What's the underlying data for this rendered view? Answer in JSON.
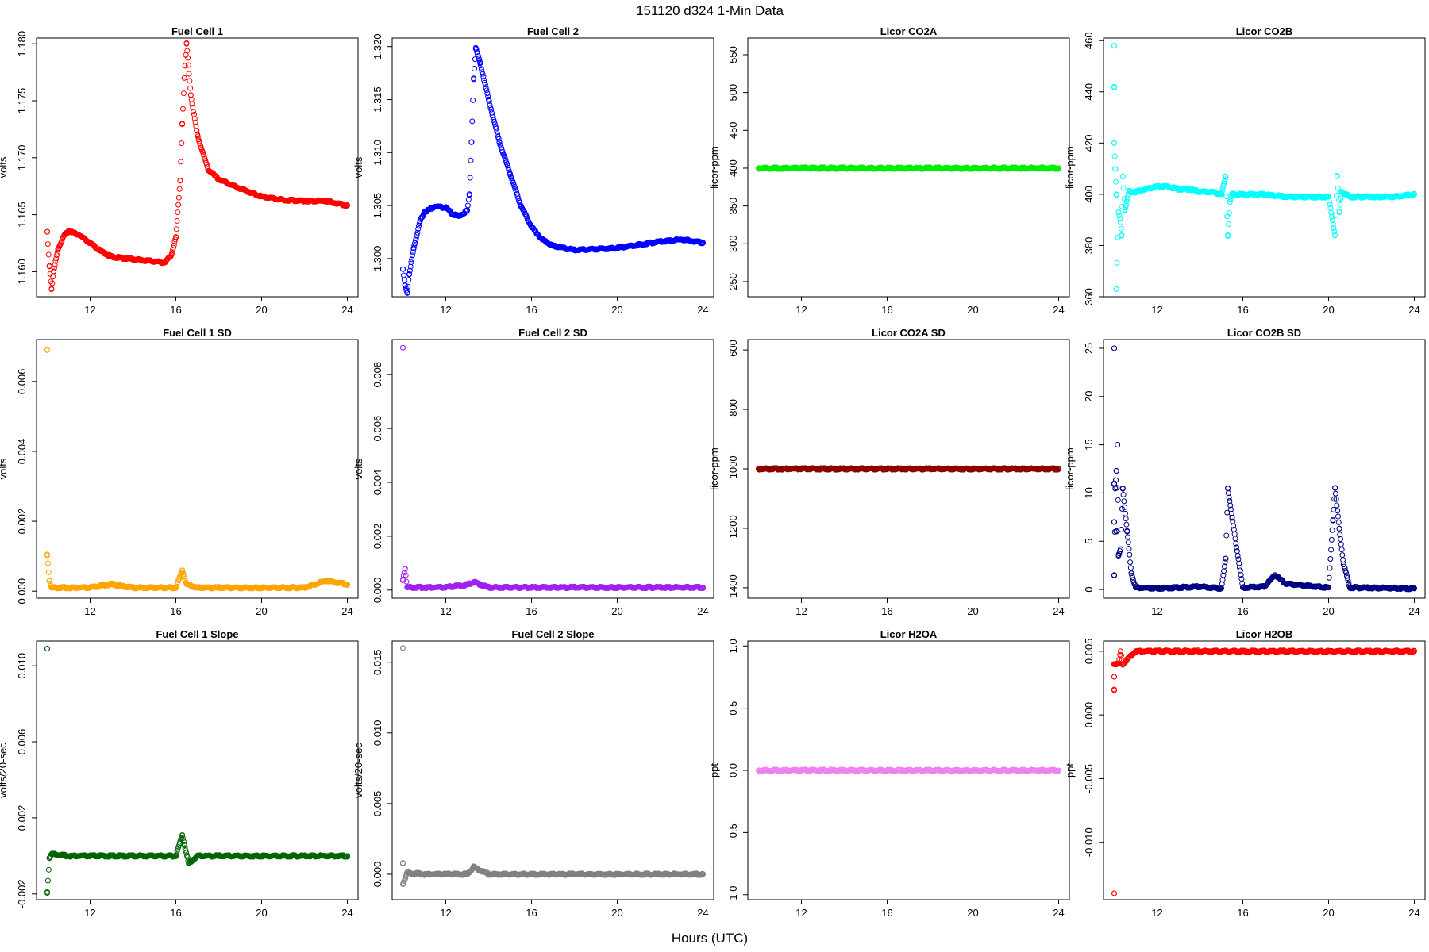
{
  "figure": {
    "title": "151120    d324    1-Min Data",
    "xlabel": "Hours (UTC)"
  },
  "chart_data": [
    {
      "type": "scatter",
      "title": "Fuel Cell 1",
      "ylabel": "volts",
      "color": "#ff0000",
      "xlim": [
        9.5,
        24.5
      ],
      "ylim": [
        1.1578,
        1.1805
      ],
      "xticks": [
        "12",
        "16",
        "20",
        "24"
      ],
      "yticks": [
        "1.160",
        "1.165",
        "1.170",
        "1.175",
        "1.180"
      ],
      "points": [
        [
          10.0,
          1.1635
        ],
        [
          10.1,
          1.1605
        ],
        [
          10.2,
          1.1585
        ],
        [
          10.3,
          1.16
        ],
        [
          10.5,
          1.162
        ],
        [
          10.8,
          1.1632
        ],
        [
          11.0,
          1.1636
        ],
        [
          11.5,
          1.1632
        ],
        [
          12.0,
          1.1625
        ],
        [
          12.5,
          1.1618
        ],
        [
          13.0,
          1.1613
        ],
        [
          13.5,
          1.1612
        ],
        [
          14.0,
          1.1611
        ],
        [
          14.5,
          1.161
        ],
        [
          15.0,
          1.1609
        ],
        [
          15.5,
          1.1608
        ],
        [
          15.8,
          1.1615
        ],
        [
          16.0,
          1.163
        ],
        [
          16.2,
          1.168
        ],
        [
          16.3,
          1.173
        ],
        [
          16.4,
          1.177
        ],
        [
          16.5,
          1.18
        ],
        [
          16.7,
          1.1755
        ],
        [
          17.0,
          1.172
        ],
        [
          17.5,
          1.169
        ],
        [
          18.0,
          1.1681
        ],
        [
          19.0,
          1.1673
        ],
        [
          20.0,
          1.1666
        ],
        [
          21.0,
          1.1663
        ],
        [
          22.0,
          1.1662
        ],
        [
          23.0,
          1.1662
        ],
        [
          24.0,
          1.1658
        ]
      ]
    },
    {
      "type": "scatter",
      "title": "Fuel Cell 2",
      "ylabel": "volts",
      "color": "#0000ff",
      "xlim": [
        9.5,
        24.5
      ],
      "ylim": [
        1.2964,
        1.3208
      ],
      "xticks": [
        "12",
        "16",
        "20",
        "24"
      ],
      "yticks": [
        "1.300",
        "1.305",
        "1.310",
        "1.315",
        "1.320"
      ],
      "points": [
        [
          10.0,
          1.299
        ],
        [
          10.1,
          1.2975
        ],
        [
          10.2,
          1.2968
        ],
        [
          10.3,
          1.2985
        ],
        [
          10.5,
          1.301
        ],
        [
          10.8,
          1.3035
        ],
        [
          11.0,
          1.3044
        ],
        [
          11.5,
          1.3049
        ],
        [
          12.0,
          1.3048
        ],
        [
          12.3,
          1.3042
        ],
        [
          12.6,
          1.304
        ],
        [
          13.0,
          1.3045
        ],
        [
          13.1,
          1.306
        ],
        [
          13.2,
          1.311
        ],
        [
          13.3,
          1.317
        ],
        [
          13.4,
          1.3198
        ],
        [
          13.6,
          1.3185
        ],
        [
          14.0,
          1.315
        ],
        [
          14.5,
          1.311
        ],
        [
          15.0,
          1.308
        ],
        [
          15.5,
          1.305
        ],
        [
          16.0,
          1.303
        ],
        [
          16.5,
          1.3018
        ],
        [
          17.0,
          1.3012
        ],
        [
          18.0,
          1.3008
        ],
        [
          19.0,
          1.3009
        ],
        [
          20.0,
          1.301
        ],
        [
          21.0,
          1.3013
        ],
        [
          22.0,
          1.3016
        ],
        [
          23.0,
          1.3018
        ],
        [
          24.0,
          1.3015
        ]
      ]
    },
    {
      "type": "scatter",
      "title": "Licor CO2A",
      "ylabel": "licor-ppm",
      "color": "#00ee00",
      "xlim": [
        9.5,
        24.5
      ],
      "ylim": [
        230,
        572
      ],
      "xticks": [
        "12",
        "16",
        "20",
        "24"
      ],
      "yticks": [
        "250",
        "300",
        "350",
        "400",
        "450",
        "500",
        "550"
      ],
      "points": [
        [
          10.0,
          400
        ],
        [
          24.0,
          400
        ]
      ]
    },
    {
      "type": "scatter",
      "title": "Licor CO2B",
      "ylabel": "licor-ppm",
      "color": "#00ffff",
      "xlim": [
        9.5,
        24.5
      ],
      "ylim": [
        360,
        461
      ],
      "xticks": [
        "12",
        "16",
        "20",
        "24"
      ],
      "yticks": [
        "360",
        "380",
        "400",
        "420",
        "440",
        "460"
      ],
      "points": [
        [
          10.0,
          458
        ],
        [
          10.0,
          442
        ],
        [
          10.0,
          420
        ],
        [
          10.05,
          410
        ],
        [
          10.1,
          400
        ],
        [
          10.1,
          363
        ],
        [
          10.2,
          393
        ],
        [
          10.3,
          389
        ],
        [
          10.35,
          384
        ],
        [
          10.4,
          407
        ],
        [
          10.5,
          394
        ],
        [
          10.7,
          401
        ],
        [
          11.0,
          401
        ],
        [
          11.5,
          402
        ],
        [
          12.0,
          403
        ],
        [
          12.5,
          403
        ],
        [
          13.0,
          402
        ],
        [
          13.5,
          402
        ],
        [
          14.0,
          401
        ],
        [
          14.5,
          401
        ],
        [
          15.0,
          400
        ],
        [
          15.2,
          407
        ],
        [
          15.3,
          384
        ],
        [
          15.4,
          397
        ],
        [
          15.5,
          400
        ],
        [
          16.0,
          400
        ],
        [
          17.0,
          400
        ],
        [
          18.0,
          399
        ],
        [
          19.0,
          399
        ],
        [
          20.0,
          399
        ],
        [
          20.3,
          384
        ],
        [
          20.4,
          407
        ],
        [
          20.5,
          393
        ],
        [
          20.6,
          401
        ],
        [
          21.0,
          399
        ],
        [
          22.0,
          399
        ],
        [
          23.0,
          399
        ],
        [
          24.0,
          400
        ]
      ]
    },
    {
      "type": "scatter",
      "title": "Fuel Cell 1 SD",
      "ylabel": "volts",
      "color": "#ffa500",
      "xlim": [
        9.5,
        24.5
      ],
      "ylim": [
        -0.0002,
        0.0072
      ],
      "xticks": [
        "12",
        "16",
        "20",
        "24"
      ],
      "yticks": [
        "0.000",
        "0.002",
        "0.004",
        "0.006"
      ],
      "points": [
        [
          10.0,
          0.0069
        ],
        [
          10.0,
          0.00105
        ],
        [
          10.1,
          0.0003
        ],
        [
          10.2,
          0.0001
        ],
        [
          11.0,
          0.0001
        ],
        [
          12.0,
          0.0001
        ],
        [
          13.0,
          0.0002
        ],
        [
          14.0,
          0.0001
        ],
        [
          15.0,
          0.0001
        ],
        [
          16.0,
          0.0001
        ],
        [
          16.3,
          0.0006
        ],
        [
          16.5,
          0.0002
        ],
        [
          17.0,
          0.0001
        ],
        [
          18.0,
          0.0001
        ],
        [
          20.0,
          0.0001
        ],
        [
          22.0,
          0.0001
        ],
        [
          23.0,
          0.0003
        ],
        [
          24.0,
          0.0002
        ]
      ]
    },
    {
      "type": "scatter",
      "title": "Fuel Cell 2 SD",
      "ylabel": "volts",
      "color": "#a020f0",
      "xlim": [
        9.5,
        24.5
      ],
      "ylim": [
        -0.0003,
        0.0093
      ],
      "xticks": [
        "12",
        "16",
        "20",
        "24"
      ],
      "yticks": [
        "0.000",
        "0.002",
        "0.004",
        "0.006",
        "0.008"
      ],
      "points": [
        [
          10.0,
          0.009
        ],
        [
          10.1,
          0.0008
        ],
        [
          10.0,
          0.0004
        ],
        [
          10.2,
          0.0001
        ],
        [
          11.0,
          0.0001
        ],
        [
          12.0,
          0.0001
        ],
        [
          13.0,
          0.0002
        ],
        [
          13.3,
          0.0003
        ],
        [
          14.0,
          0.0001
        ],
        [
          16.0,
          0.0001
        ],
        [
          17.0,
          0.0001
        ],
        [
          20.0,
          0.0001
        ],
        [
          24.0,
          0.0001
        ]
      ]
    },
    {
      "type": "scatter",
      "title": "Licor CO2A SD",
      "ylabel": "licor-ppm",
      "color": "#8b0000",
      "xlim": [
        9.5,
        24.5
      ],
      "ylim": [
        -1435,
        -565
      ],
      "xticks": [
        "12",
        "16",
        "20",
        "24"
      ],
      "yticks": [
        "-1400",
        "-1200",
        "-1000",
        "-800",
        "-600"
      ],
      "points": [
        [
          10.0,
          -1000
        ],
        [
          24.0,
          -1000
        ]
      ]
    },
    {
      "type": "scatter",
      "title": "Licor CO2B SD",
      "ylabel": "licor-ppm",
      "color": "#000080",
      "xlim": [
        9.5,
        24.5
      ],
      "ylim": [
        -0.9,
        25.9
      ],
      "xticks": [
        "12",
        "16",
        "20",
        "24"
      ],
      "yticks": [
        "0",
        "5",
        "10",
        "15",
        "20",
        "25"
      ],
      "points": [
        [
          10.0,
          25.0
        ],
        [
          10.0,
          11.0
        ],
        [
          10.05,
          10.5
        ],
        [
          10.1,
          12.3
        ],
        [
          10.15,
          15.0
        ],
        [
          10.0,
          7.0
        ],
        [
          10.1,
          6.0
        ],
        [
          10.2,
          3.5
        ],
        [
          10.3,
          4.2
        ],
        [
          10.0,
          1.5
        ],
        [
          10.4,
          10.5
        ],
        [
          10.6,
          6.0
        ],
        [
          10.8,
          1.7
        ],
        [
          11.0,
          0.2
        ],
        [
          12.0,
          0.1
        ],
        [
          13.0,
          0.2
        ],
        [
          14.0,
          0.3
        ],
        [
          15.0,
          0.1
        ],
        [
          15.2,
          3.2
        ],
        [
          15.3,
          10.5
        ],
        [
          15.5,
          7.4
        ],
        [
          16.0,
          0.2
        ],
        [
          17.0,
          0.3
        ],
        [
          17.5,
          1.5
        ],
        [
          18.0,
          0.6
        ],
        [
          20.0,
          0.2
        ],
        [
          20.2,
          7.2
        ],
        [
          20.3,
          10.5
        ],
        [
          20.5,
          6.3
        ],
        [
          20.7,
          2.6
        ],
        [
          21.0,
          0.2
        ],
        [
          24.0,
          0.1
        ]
      ]
    },
    {
      "type": "scatter",
      "title": "Fuel Cell 1 Slope",
      "ylabel": "volts/20-sec",
      "color": "#006400",
      "xlim": [
        9.5,
        24.5
      ],
      "ylim": [
        -0.0023,
        0.0113
      ],
      "xticks": [
        "12",
        "16",
        "20",
        "24"
      ],
      "yticks": [
        "-0.002",
        "0.002",
        "0.006",
        "0.010"
      ],
      "points": [
        [
          10.0,
          0.0109
        ],
        [
          10.0,
          -0.0019
        ],
        [
          10.1,
          -0.0001
        ],
        [
          10.2,
          0.0001
        ],
        [
          11.0,
          0.0
        ],
        [
          12.0,
          0.0
        ],
        [
          13.0,
          0.0
        ],
        [
          14.0,
          0.0
        ],
        [
          15.0,
          0.0
        ],
        [
          16.0,
          0.0
        ],
        [
          16.3,
          0.0011
        ],
        [
          16.4,
          0.0006
        ],
        [
          16.6,
          -0.0004
        ],
        [
          17.0,
          0.0
        ],
        [
          18.0,
          0.0
        ],
        [
          20.0,
          0.0
        ],
        [
          22.0,
          0.0
        ],
        [
          24.0,
          0.0
        ]
      ]
    },
    {
      "type": "scatter",
      "title": "Fuel Cell 2 Slope",
      "ylabel": "volts/20-sec",
      "color": "#808080",
      "xlim": [
        9.5,
        24.5
      ],
      "ylim": [
        -0.0018,
        0.0165
      ],
      "xticks": [
        "12",
        "16",
        "20",
        "24"
      ],
      "yticks": [
        "0.000",
        "0.005",
        "0.010",
        "0.015"
      ],
      "points": [
        [
          10.0,
          0.016
        ],
        [
          10.0,
          0.0008
        ],
        [
          10.0,
          -0.0007
        ],
        [
          10.2,
          0.0001
        ],
        [
          11.0,
          0.0
        ],
        [
          12.0,
          0.0
        ],
        [
          13.0,
          0.0
        ],
        [
          13.3,
          0.0005
        ],
        [
          14.0,
          0.0
        ],
        [
          16.0,
          0.0
        ],
        [
          18.0,
          0.0
        ],
        [
          20.0,
          0.0
        ],
        [
          24.0,
          0.0
        ]
      ]
    },
    {
      "type": "scatter",
      "title": "Licor H2OA",
      "ylabel": "ppt",
      "color": "#ee82ee",
      "xlim": [
        9.5,
        24.5
      ],
      "ylim": [
        -1.04,
        1.04
      ],
      "xticks": [
        "12",
        "16",
        "20",
        "24"
      ],
      "yticks": [
        "-1.0",
        "-0.5",
        "0.0",
        "0.5",
        "1.0"
      ],
      "points": [
        [
          10.0,
          0.0
        ],
        [
          24.0,
          0.0
        ]
      ]
    },
    {
      "type": "scatter",
      "title": "Licor H2OB",
      "ylabel": "ppt",
      "color": "#ff0000",
      "xlim": [
        9.5,
        24.5
      ],
      "ylim": [
        -0.0145,
        0.0058
      ],
      "xticks": [
        "12",
        "16",
        "20",
        "24"
      ],
      "yticks": [
        "-0.010",
        "-0.005",
        "0.000",
        "0.005"
      ],
      "points": [
        [
          10.0,
          -0.014
        ],
        [
          10.0,
          0.002
        ],
        [
          10.0,
          0.003
        ],
        [
          10.0,
          0.004
        ],
        [
          10.2,
          0.004
        ],
        [
          10.4,
          0.004
        ],
        [
          10.3,
          0.005
        ],
        [
          11.0,
          0.005
        ],
        [
          16.0,
          0.005
        ],
        [
          20.0,
          0.005
        ],
        [
          24.0,
          0.005
        ]
      ]
    }
  ]
}
